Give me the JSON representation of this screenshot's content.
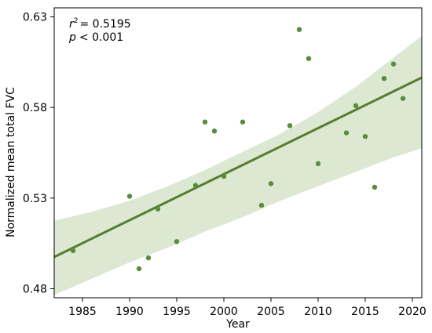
{
  "chart_data": {
    "type": "scatter",
    "xlabel": "Year",
    "ylabel": "Normalized mean total FVC",
    "xlim": [
      1982,
      2021
    ],
    "ylim": [
      0.475,
      0.635
    ],
    "xticks": [
      1985,
      1990,
      1995,
      2000,
      2005,
      2010,
      2015,
      2020
    ],
    "yticks": [
      0.48,
      0.53,
      0.58,
      0.63
    ],
    "ytick_labels": [
      "0.48",
      "0.53",
      "0.58",
      "0.63"
    ],
    "point_color": "#5b8c3a",
    "line_color": "#567d2e",
    "band_color": "#dde8d3",
    "grid": false,
    "annotation_r2": "= 0.5195",
    "annotation_p": "< 0.001",
    "series": [
      {
        "type": "scatter",
        "x": [
          1984,
          1990,
          1991,
          1992,
          1993,
          1995,
          1997,
          1998,
          1999,
          2000,
          2002,
          2004,
          2005,
          2007,
          2008,
          2009,
          2010,
          2013,
          2014,
          2015,
          2016,
          2017,
          2018,
          2019
        ],
        "y": [
          0.501,
          0.531,
          0.491,
          0.497,
          0.524,
          0.506,
          0.537,
          0.572,
          0.567,
          0.542,
          0.572,
          0.526,
          0.538,
          0.57,
          0.623,
          0.607,
          0.549,
          0.566,
          0.581,
          0.564,
          0.536,
          0.596,
          0.604,
          0.585
        ]
      }
    ],
    "fit": {
      "x": [
        1982,
        2021
      ],
      "y": [
        0.4975,
        0.5965
      ]
    },
    "ci": {
      "x": [
        1982,
        1986,
        1990,
        1994,
        1998,
        2002,
        2006,
        2010,
        2014,
        2018,
        2021
      ],
      "upper": [
        0.5175,
        0.5225,
        0.5285,
        0.5365,
        0.5455,
        0.5555,
        0.5655,
        0.5775,
        0.5915,
        0.6075,
        0.6195
      ],
      "lower": [
        0.4765,
        0.4855,
        0.4945,
        0.5025,
        0.5115,
        0.5195,
        0.5285,
        0.5365,
        0.5445,
        0.5525,
        0.5575
      ]
    }
  }
}
